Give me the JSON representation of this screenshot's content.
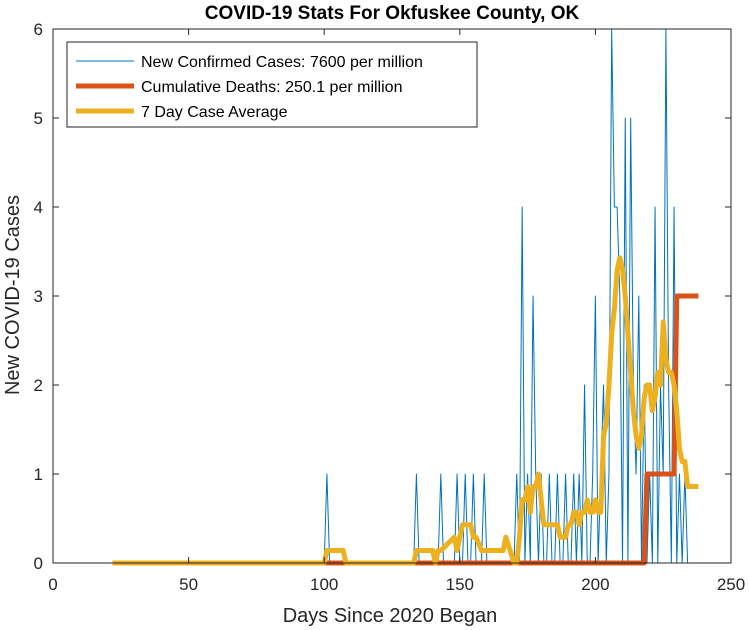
{
  "chart_data": {
    "type": "line",
    "title": "COVID-19 Stats For Okfuskee County, OK",
    "xlabel": "Days Since 2020 Began",
    "ylabel": "New COVID-19 Cases",
    "xlim": [
      0,
      250
    ],
    "ylim": [
      0,
      6
    ],
    "xticks": [
      0,
      50,
      100,
      150,
      200,
      250
    ],
    "yticks": [
      0,
      1,
      2,
      3,
      4,
      5,
      6
    ],
    "grid": false,
    "legend_position": "top-left",
    "series": [
      {
        "name": "New Confirmed Cases: 7600 per million",
        "color": "#0072BD",
        "x": [
          22,
          100,
          101,
          102,
          133,
          134,
          135,
          142,
          143,
          144,
          145,
          148,
          149,
          150,
          151,
          152,
          153,
          154,
          155,
          156,
          157,
          158,
          159,
          160,
          161,
          162,
          163,
          164,
          165,
          166,
          167,
          168,
          169,
          170,
          171,
          172,
          173,
          174,
          175,
          176,
          177,
          178,
          179,
          180,
          181,
          182,
          183,
          184,
          185,
          186,
          187,
          188,
          189,
          190,
          191,
          192,
          193,
          194,
          195,
          196,
          197,
          198,
          199,
          200,
          201,
          202,
          203,
          204,
          205,
          206,
          207,
          208,
          209,
          210,
          211,
          212,
          213,
          214,
          215,
          216,
          217,
          218,
          219,
          220,
          221,
          222,
          223,
          224,
          225,
          226,
          227,
          228,
          229,
          230,
          231,
          232,
          233,
          234,
          235,
          236,
          237
        ],
        "y": [
          0,
          0,
          1,
          0,
          0,
          1,
          0,
          0,
          1,
          0,
          0,
          0,
          1,
          0,
          0,
          1,
          0,
          0,
          1,
          0,
          0,
          0,
          1,
          0,
          0,
          0,
          0,
          0,
          0,
          0,
          0,
          0,
          0,
          0,
          1,
          0,
          4,
          0,
          1,
          0,
          3,
          1,
          0,
          1,
          0,
          0,
          1,
          0,
          0,
          1,
          0,
          0,
          1,
          0,
          0,
          1,
          0,
          1,
          0,
          2,
          0,
          0,
          1,
          3,
          0,
          1,
          2,
          0,
          1,
          6,
          4,
          4,
          3,
          0,
          5,
          0,
          5,
          2,
          1,
          3,
          0,
          2,
          0,
          1,
          0,
          4,
          0,
          2,
          1,
          6,
          2,
          0,
          4,
          0,
          1,
          0,
          1,
          0,
          0,
          0,
          0
        ]
      },
      {
        "name": "Cumulative Deaths: 250.1 per million",
        "color": "#D95319",
        "x": [
          22,
          218,
          219,
          229,
          230,
          238
        ],
        "y": [
          0,
          0,
          1,
          1,
          3,
          3
        ]
      },
      {
        "name": "7 Day Case Average",
        "color": "#EDB120",
        "x": [
          22,
          100,
          101,
          107,
          108,
          133,
          134,
          140,
          141,
          142,
          143,
          148,
          149,
          150,
          151,
          154,
          155,
          156,
          158,
          159,
          166,
          167,
          170,
          171,
          172,
          173,
          174,
          175,
          176,
          177,
          178,
          179,
          180,
          181,
          182,
          183,
          186,
          187,
          188,
          189,
          190,
          191,
          192,
          193,
          194,
          195,
          196,
          197,
          198,
          199,
          200,
          201,
          202,
          203,
          204,
          205,
          206,
          207,
          208,
          209,
          210,
          211,
          212,
          213,
          214,
          215,
          216,
          217,
          218,
          219,
          220,
          221,
          222,
          223,
          224,
          225,
          226,
          227,
          228,
          229,
          230,
          231,
          232,
          233,
          234,
          235,
          236,
          237,
          238
        ],
        "y": [
          0,
          0,
          0.14,
          0.14,
          0,
          0,
          0.14,
          0.14,
          0,
          0.14,
          0.14,
          0.29,
          0.14,
          0.29,
          0.43,
          0.43,
          0.29,
          0.29,
          0.14,
          0.14,
          0.14,
          0.29,
          0,
          0,
          0.29,
          0.71,
          0.71,
          0.86,
          0.57,
          0.86,
          0.86,
          1,
          0.71,
          0.43,
          0.43,
          0.43,
          0.43,
          0.29,
          0.29,
          0.29,
          0.43,
          0.43,
          0.57,
          0.57,
          0.43,
          0.57,
          0.57,
          0.71,
          0.57,
          0.57,
          0.71,
          0.57,
          0.57,
          1.43,
          1.57,
          2,
          2.57,
          2.86,
          3.29,
          3.43,
          3.29,
          3,
          2.57,
          2.14,
          1.71,
          1.43,
          1.29,
          1.43,
          1.86,
          2,
          2,
          1.71,
          1.86,
          2.14,
          2,
          2.71,
          2.29,
          2.14,
          2.14,
          2,
          1.71,
          1.29,
          1.14,
          1.14,
          0.86,
          0.86,
          0.86,
          0.86,
          0.86
        ]
      }
    ]
  }
}
